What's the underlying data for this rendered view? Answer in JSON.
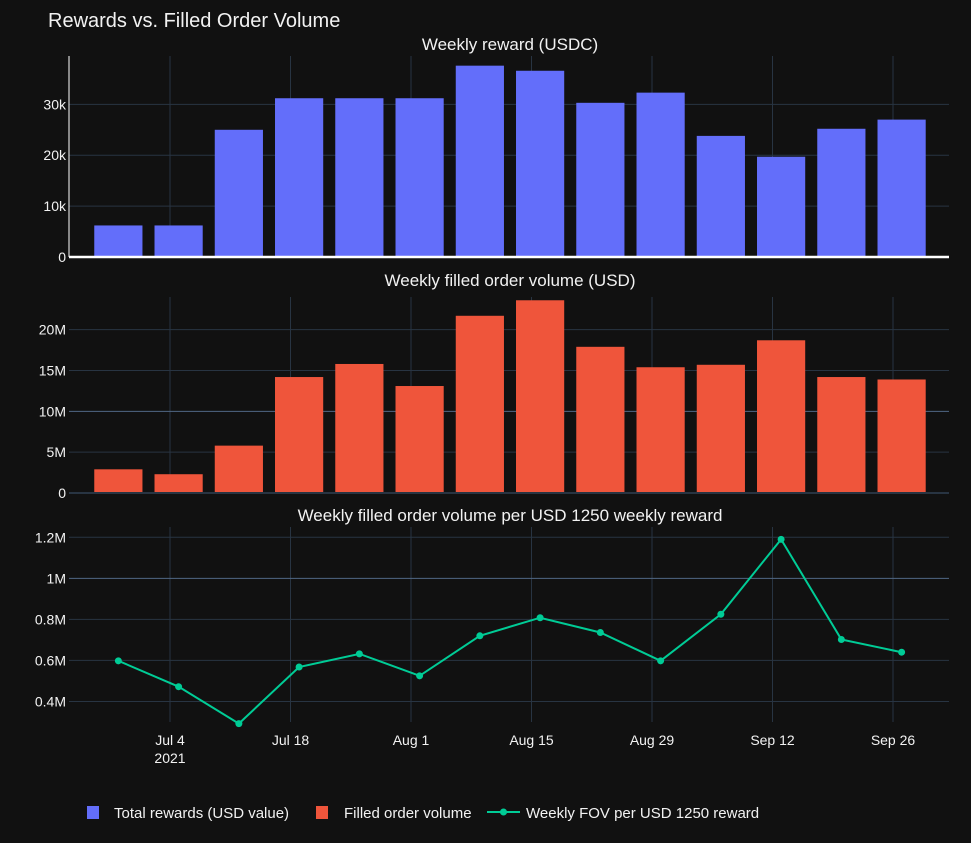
{
  "title": "Rewards vs. Filled Order Volume",
  "colors": {
    "background": "#111111",
    "grid": "#283442",
    "reward": "#636efa",
    "volume": "#ef553b",
    "fov": "#00cc96",
    "text": "#f2f2f2"
  },
  "legend": {
    "reward": "Total rewards (USD value)",
    "volume": "Filled order volume",
    "fov": "Weekly FOV per USD 1250 reward"
  },
  "x_ticks": [
    {
      "label": "Jul 4",
      "sub": "2021",
      "day": 4
    },
    {
      "label": "Jul 18",
      "sub": "",
      "day": 18
    },
    {
      "label": "Aug 1",
      "sub": "",
      "day": 32
    },
    {
      "label": "Aug 15",
      "sub": "",
      "day": 46
    },
    {
      "label": "Aug 29",
      "sub": "",
      "day": 60
    },
    {
      "label": "Sep 12",
      "sub": "",
      "day": 74
    },
    {
      "label": "Sep 26",
      "sub": "",
      "day": 88
    }
  ],
  "chart_data": [
    {
      "type": "bar",
      "title": "Weekly reward (USDC)",
      "series_name": "Total rewards (USD value)",
      "x_days": [
        -2,
        5,
        12,
        19,
        26,
        33,
        40,
        47,
        54,
        61,
        68,
        75,
        82,
        89
      ],
      "values": [
        6200,
        6200,
        25000,
        31200,
        31200,
        31200,
        37600,
        36600,
        30300,
        32300,
        23800,
        19700,
        25200,
        27000
      ],
      "ylim": [
        0,
        39500
      ],
      "yticks": [
        {
          "v": 0,
          "label": "0"
        },
        {
          "v": 10000,
          "label": "10k"
        },
        {
          "v": 20000,
          "label": "20k"
        },
        {
          "v": 30000,
          "label": "30k"
        }
      ]
    },
    {
      "type": "bar",
      "title": "Weekly filled order volume (USD)",
      "series_name": "Filled order volume",
      "x_days": [
        -2,
        5,
        12,
        19,
        26,
        33,
        40,
        47,
        54,
        61,
        68,
        75,
        82,
        89
      ],
      "values": [
        2900000,
        2300000,
        5800000,
        14200000,
        15800000,
        13100000,
        21700000,
        23600000,
        17900000,
        15400000,
        15700000,
        18700000,
        14200000,
        13900000
      ],
      "ylim": [
        0,
        24000000
      ],
      "yticks": [
        {
          "v": 0,
          "label": "0"
        },
        {
          "v": 5000000,
          "label": "5M"
        },
        {
          "v": 10000000,
          "label": "10M"
        },
        {
          "v": 15000000,
          "label": "15M"
        },
        {
          "v": 20000000,
          "label": "20M"
        }
      ]
    },
    {
      "type": "line",
      "title": "Weekly filled order volume per USD 1250 weekly reward",
      "series_name": "Weekly FOV per USD 1250 reward",
      "x_days": [
        -2,
        5,
        12,
        19,
        26,
        33,
        40,
        47,
        54,
        61,
        68,
        75,
        82,
        89
      ],
      "values": [
        598000,
        472000,
        292000,
        568000,
        632000,
        525000,
        720000,
        808000,
        736000,
        598000,
        825000,
        1190000,
        702000,
        640000
      ],
      "ylim": [
        300000,
        1250000
      ],
      "yticks": [
        {
          "v": 400000,
          "label": "0.4M"
        },
        {
          "v": 600000,
          "label": "0.6M"
        },
        {
          "v": 800000,
          "label": "0.8M"
        },
        {
          "v": 1000000,
          "label": "1M"
        },
        {
          "v": 1200000,
          "label": "1.2M"
        }
      ]
    }
  ]
}
